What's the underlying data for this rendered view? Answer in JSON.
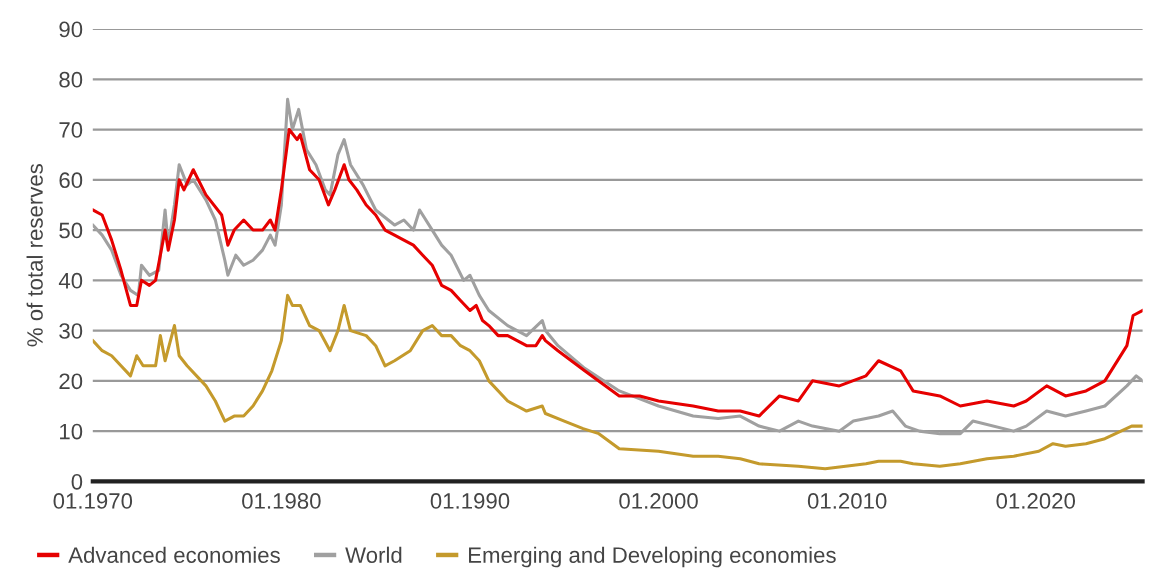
{
  "chart_data": {
    "type": "line",
    "ylabel": "% of total reserves",
    "xlim": [
      "1970-01",
      "2025-09"
    ],
    "xticks": [
      {
        "value": "1970-01",
        "label": "01.1970"
      },
      {
        "value": "1980-01",
        "label": "01.1980"
      },
      {
        "value": "1990-01",
        "label": "01.1990"
      },
      {
        "value": "2000-01",
        "label": "01.2000"
      },
      {
        "value": "2010-01",
        "label": "01.2010"
      },
      {
        "value": "2020-01",
        "label": "01.2020"
      }
    ],
    "ylim": [
      0,
      90
    ],
    "yticks": [
      0,
      10,
      20,
      30,
      40,
      50,
      60,
      70,
      80,
      90
    ],
    "grid": "y",
    "legend": "bottom",
    "marker": "none",
    "line_style": "solid",
    "series": [
      {
        "name": "Advanced economies",
        "color": "#e60000",
        "x": [
          "1970-01",
          "1970-07",
          "1971-01",
          "1971-07",
          "1972-01",
          "1972-05",
          "1972-08",
          "1973-01",
          "1973-05",
          "1973-11",
          "1974-01",
          "1974-05",
          "1974-08",
          "1974-11",
          "1975-05",
          "1976-01",
          "1976-11",
          "1977-03",
          "1977-07",
          "1978-01",
          "1978-07",
          "1979-01",
          "1979-06",
          "1979-09",
          "1980-01",
          "1980-06",
          "1980-11",
          "1981-01",
          "1981-07",
          "1982-01",
          "1982-07",
          "1982-11",
          "1983-05",
          "1983-08",
          "1984-01",
          "1984-07",
          "1985-01",
          "1985-07",
          "1986-01",
          "1986-07",
          "1987-01",
          "1987-07",
          "1988-01",
          "1988-07",
          "1989-01",
          "1989-07",
          "1990-01",
          "1990-05",
          "1990-09",
          "1991-01",
          "1991-07",
          "1992-01",
          "1993-01",
          "1993-07",
          "1993-11",
          "1994-01",
          "1994-09",
          "1996-02",
          "1997-12",
          "1999-01",
          "2000-01",
          "2001-11",
          "2003-03",
          "2004-05",
          "2005-05",
          "2006-06",
          "2007-06",
          "2008-03",
          "2009-08",
          "2011-01",
          "2011-09",
          "2012-11",
          "2013-07",
          "2014-12",
          "2016-01",
          "2017-06",
          "2018-11",
          "2019-07",
          "2020-08",
          "2021-08",
          "2022-09",
          "2023-09",
          "2024-11",
          "2025-03",
          "2025-09"
        ],
        "values": [
          54,
          53,
          48,
          42,
          35,
          35,
          40,
          39,
          40,
          50,
          46,
          52,
          60,
          58,
          62,
          57,
          53,
          47,
          50,
          52,
          50,
          50,
          52,
          50,
          58,
          70,
          68,
          69,
          62,
          60,
          55,
          58,
          63,
          60,
          58,
          55,
          53,
          50,
          49,
          48,
          47,
          45,
          43,
          39,
          38,
          36,
          34,
          35,
          32,
          31,
          29,
          29,
          27,
          27,
          29,
          28,
          26,
          22,
          17,
          17,
          16,
          15,
          14,
          14,
          13,
          17,
          16,
          20,
          19,
          21,
          24,
          22,
          18,
          17,
          15,
          16,
          15,
          16,
          19,
          17,
          18,
          20,
          27,
          33,
          34
        ]
      },
      {
        "name": "World",
        "color": "#a0a0a0",
        "x": [
          "1970-01",
          "1970-07",
          "1971-01",
          "1971-07",
          "1972-01",
          "1972-06",
          "1972-08",
          "1973-01",
          "1973-07",
          "1973-11",
          "1974-01",
          "1974-05",
          "1974-08",
          "1975-01",
          "1975-05",
          "1976-01",
          "1976-07",
          "1977-01",
          "1977-03",
          "1977-08",
          "1978-01",
          "1978-07",
          "1979-01",
          "1979-06",
          "1979-09",
          "1980-01",
          "1980-05",
          "1980-08",
          "1980-12",
          "1981-05",
          "1981-11",
          "1982-05",
          "1982-08",
          "1983-01",
          "1983-05",
          "1983-09",
          "1984-05",
          "1985-01",
          "1986-01",
          "1986-07",
          "1987-01",
          "1987-05",
          "1988-01",
          "1988-07",
          "1989-01",
          "1989-09",
          "1990-01",
          "1990-07",
          "1991-01",
          "1992-01",
          "1993-01",
          "1993-11",
          "1994-01",
          "1994-09",
          "1996-02",
          "1997-12",
          "2000-01",
          "2001-11",
          "2003-03",
          "2004-05",
          "2005-05",
          "2006-06",
          "2007-06",
          "2008-03",
          "2009-08",
          "2010-05",
          "2011-09",
          "2012-06",
          "2013-02",
          "2013-11",
          "2014-12",
          "2016-01",
          "2016-09",
          "2018-11",
          "2019-07",
          "2020-08",
          "2021-08",
          "2022-09",
          "2023-09",
          "2024-11",
          "2025-05",
          "2025-09"
        ],
        "values": [
          51,
          49,
          46,
          41,
          38,
          37,
          43,
          41,
          42,
          54,
          47,
          55,
          63,
          59,
          60,
          56,
          52,
          44,
          41,
          45,
          43,
          44,
          46,
          49,
          47,
          55,
          76,
          70,
          74,
          66,
          63,
          58,
          57,
          65,
          68,
          63,
          59,
          54,
          51,
          52,
          50,
          54,
          50,
          47,
          45,
          40,
          41,
          37,
          34,
          31,
          29,
          32,
          30,
          27,
          22.5,
          18,
          15,
          13,
          12.5,
          13,
          11,
          10,
          12,
          11,
          10,
          12,
          13,
          14,
          11,
          10,
          9.5,
          9.5,
          12,
          10,
          11,
          14,
          13,
          14,
          15,
          19,
          21,
          20
        ]
      },
      {
        "name": "Emerging and Developing economies",
        "color": "#c49a2c",
        "x": [
          "1970-01",
          "1970-07",
          "1971-01",
          "1971-07",
          "1972-01",
          "1972-05",
          "1972-09",
          "1973-05",
          "1973-08",
          "1973-11",
          "1974-05",
          "1974-08",
          "1975-01",
          "1976-01",
          "1976-07",
          "1977-01",
          "1977-07",
          "1978-01",
          "1978-07",
          "1979-01",
          "1979-07",
          "1980-01",
          "1980-05",
          "1980-08",
          "1981-01",
          "1981-07",
          "1982-01",
          "1982-08",
          "1983-01",
          "1983-05",
          "1983-09",
          "1984-07",
          "1985-01",
          "1985-07",
          "1986-01",
          "1986-11",
          "1987-07",
          "1988-01",
          "1988-07",
          "1989-01",
          "1989-07",
          "1990-01",
          "1990-07",
          "1991-01",
          "1992-01",
          "1992-07",
          "1993-01",
          "1993-11",
          "1994-01",
          "1995-01",
          "1996-01",
          "1996-11",
          "1997-12",
          "2000-01",
          "2001-11",
          "2003-03",
          "2004-05",
          "2005-05",
          "2007-06",
          "2008-11",
          "2011-01",
          "2011-09",
          "2012-11",
          "2013-07",
          "2014-12",
          "2016-01",
          "2017-06",
          "2018-11",
          "2020-03",
          "2020-12",
          "2021-08",
          "2022-09",
          "2023-09",
          "2025-02",
          "2025-09"
        ],
        "values": [
          28,
          26,
          25,
          23,
          21,
          25,
          23,
          23,
          29,
          24,
          31,
          25,
          23,
          19,
          16,
          12,
          13,
          13,
          15,
          18,
          22,
          28,
          37,
          35,
          35,
          31,
          30,
          26,
          30,
          35,
          30,
          29,
          27,
          23,
          24,
          26,
          30,
          31,
          29,
          29,
          27,
          26,
          24,
          20,
          16,
          15,
          14,
          15,
          13.5,
          12,
          10.5,
          9.5,
          6.5,
          6,
          5,
          5,
          4.5,
          3.5,
          3,
          2.5,
          3.5,
          4,
          4,
          3.5,
          3,
          3.5,
          4.5,
          5,
          6,
          7.5,
          7,
          7.5,
          8.5,
          11,
          11
        ]
      }
    ]
  }
}
